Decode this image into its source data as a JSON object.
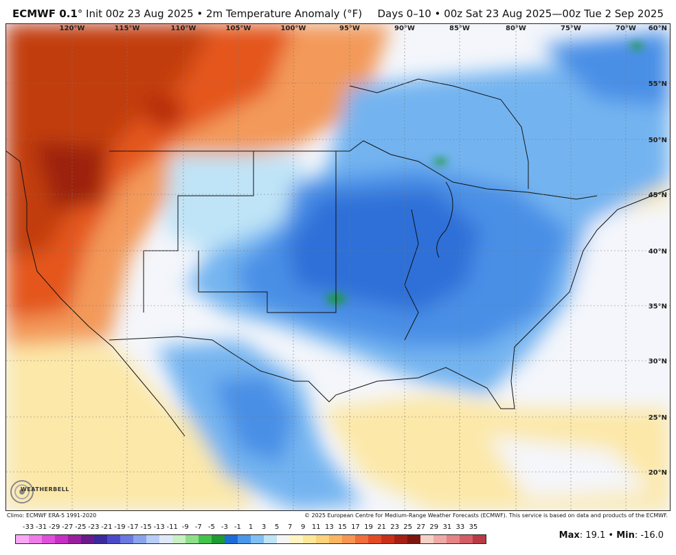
{
  "header": {
    "model": "ECMWF 0.1",
    "degree": "°",
    "subtitle": " Init 00z 23 Aug 2025 • 2m Temperature Anomaly (°F)",
    "range": "Days 0–10 • 00z Sat 23 Aug 2025—00z Tue 2 Sep 2025"
  },
  "map": {
    "lon_labels": [
      "120°W",
      "115°W",
      "110°W",
      "105°W",
      "100°W",
      "95°W",
      "90°W",
      "85°W",
      "80°W",
      "75°W",
      "70°W"
    ],
    "lat_labels": [
      "60°N",
      "55°N",
      "50°N",
      "45°N",
      "40°N",
      "35°N",
      "30°N",
      "25°N",
      "20°N"
    ],
    "colors": {
      "very_warm": "#b52a0c",
      "warm": "#e4571e",
      "mild_warm": "#f39a5a",
      "slight_warm": "#fce8a8",
      "neutral": "#f4f6fb",
      "slight_cool": "#bfe4f7",
      "cool": "#73b4f0",
      "cold": "#4a8fe6",
      "colder": "#2d6fd8",
      "coldest": "#1a9a3b"
    }
  },
  "footer": {
    "climo": "Climo: ECMWF ERA-5 1991-2020",
    "copyright": "© 2025 European Centre for Medium-Range Weather Forecasts (ECMWF). This service is based on data and products of the ECMWF."
  },
  "logo": {
    "text": "WEATHERBELL"
  },
  "colorbar": {
    "labels": [
      "-33",
      "-31",
      "-29",
      "-27",
      "-25",
      "-23",
      "-21",
      "-19",
      "-17",
      "-15",
      "-13",
      "-11",
      "-9",
      "-7",
      "-5",
      "-3",
      "-1",
      "1",
      "3",
      "5",
      "7",
      "9",
      "11",
      "13",
      "15",
      "17",
      "19",
      "21",
      "23",
      "25",
      "27",
      "29",
      "31",
      "33",
      "35"
    ],
    "colors": [
      "#f7a8f2",
      "#ef7be8",
      "#e04fd9",
      "#c62fc2",
      "#9a1f9c",
      "#6a1a8a",
      "#3a2a9e",
      "#4a4ac9",
      "#6a78e0",
      "#8aa3ec",
      "#b8cdf5",
      "#dfe8fa",
      "#c9f0c4",
      "#8edf8a",
      "#44c34a",
      "#1e9a33",
      "#1d6bd6",
      "#4a96ea",
      "#7fc0f3",
      "#bfe4f8",
      "#f5f5f5",
      "#fff4c2",
      "#fde79a",
      "#fcd27a",
      "#f9b561",
      "#f79552",
      "#f06d3c",
      "#e24a26",
      "#c9301a",
      "#a51f14",
      "#7d160f",
      "#f4d0c6",
      "#eeaaa6",
      "#e48585",
      "#d25e63",
      "#b93a44"
    ]
  },
  "stats": {
    "max_label": "Max",
    "max_value": ": 19.1",
    "sep": " • ",
    "min_label": "Min",
    "min_value": ": -16.0"
  }
}
